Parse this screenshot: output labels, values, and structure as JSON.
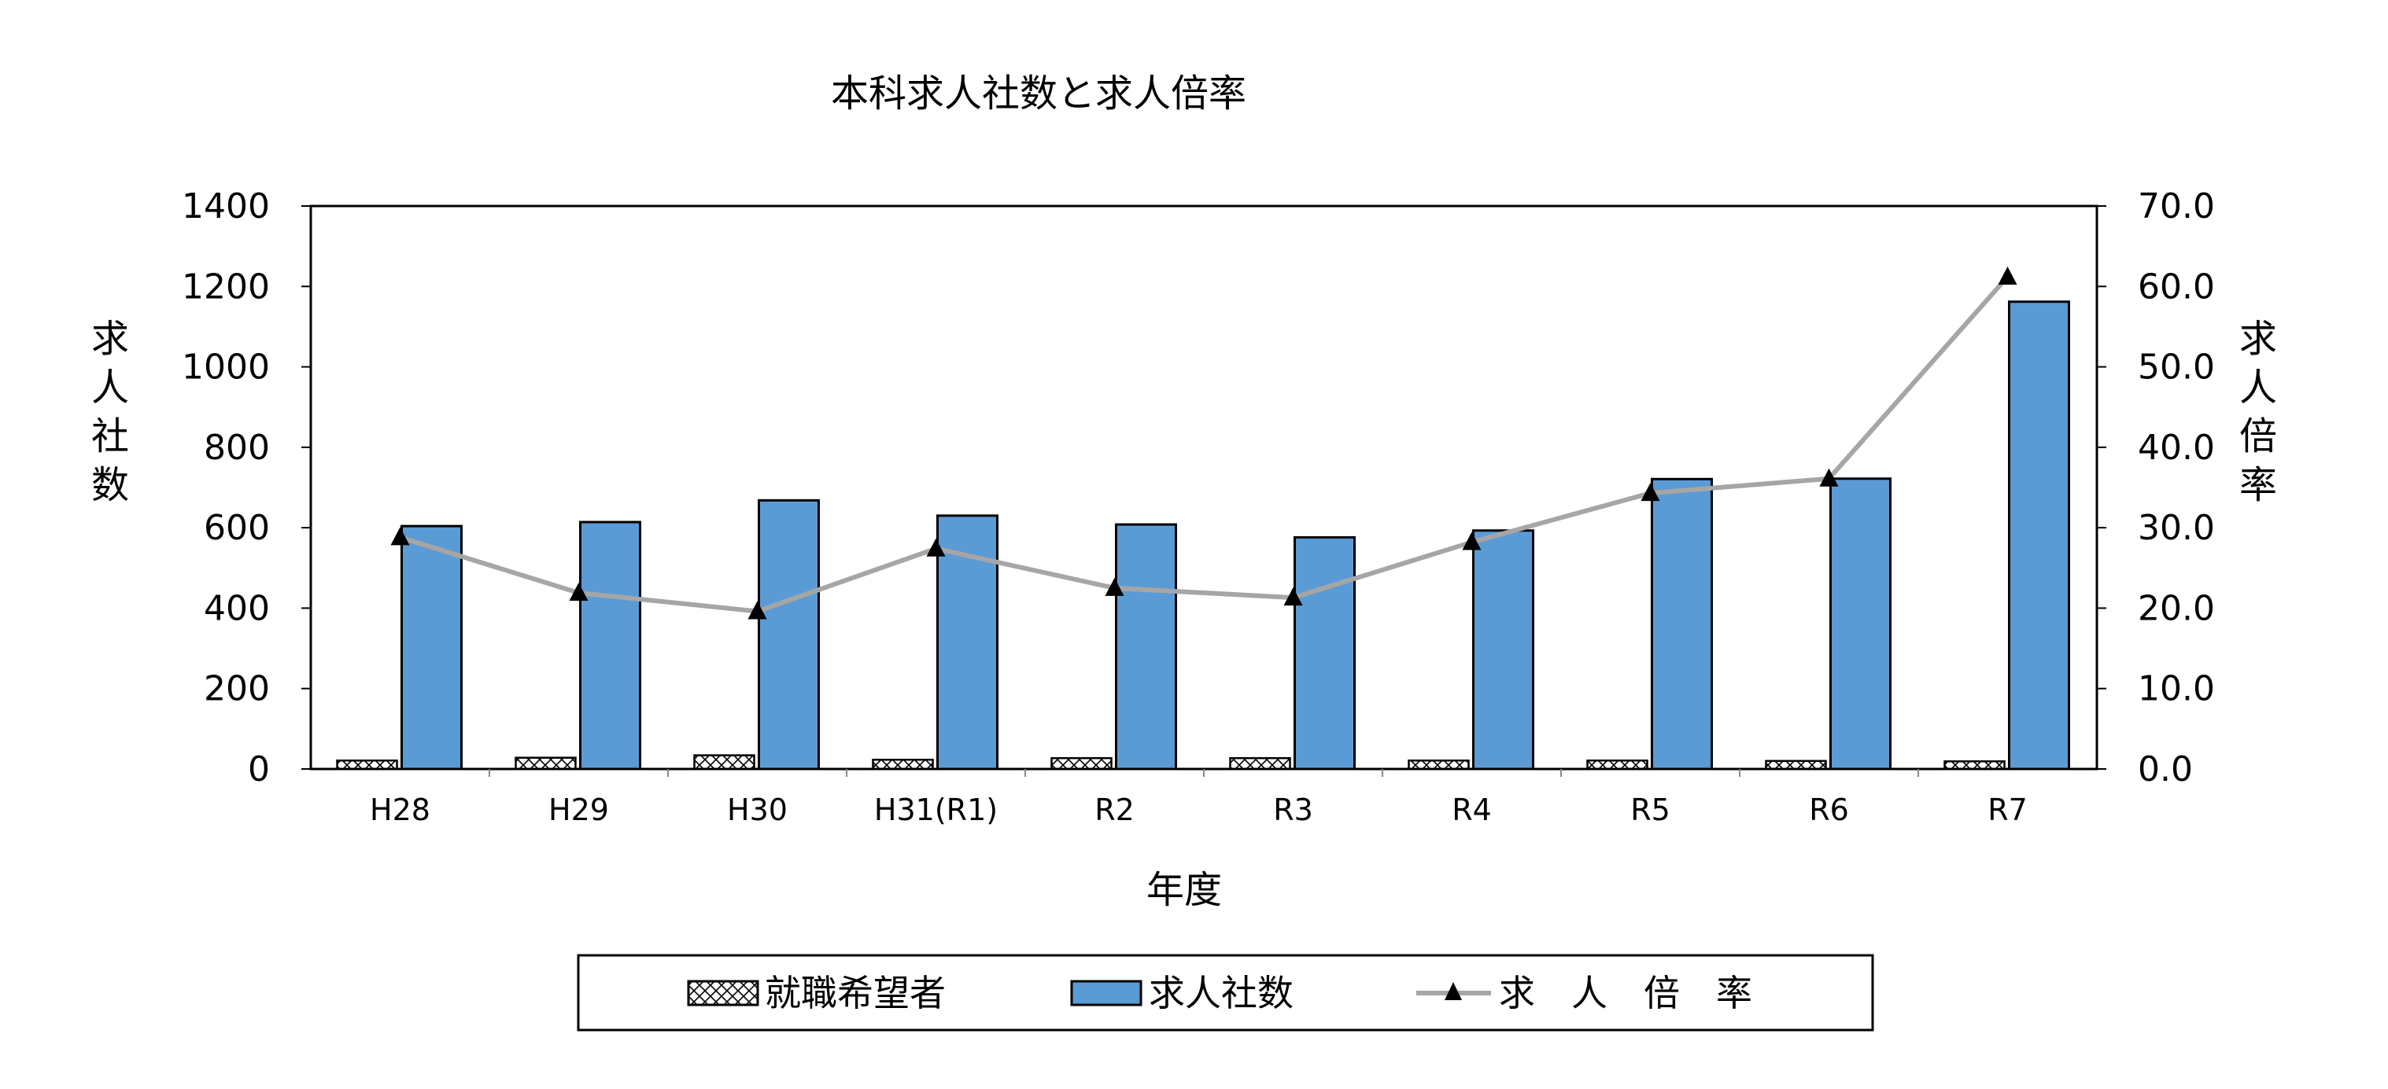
{
  "chart_data": {
    "type": "bar",
    "title": "本科求人社数と求人倍率",
    "xlabel": "年度",
    "ylabel_left": "求人社数",
    "ylabel_right": "求人倍率",
    "ylim_left": [
      0,
      1400
    ],
    "ylim_right": [
      0,
      70
    ],
    "yticks_left": [
      "0",
      "200",
      "400",
      "600",
      "800",
      "1000",
      "1200",
      "1400"
    ],
    "yticks_right": [
      "0.0",
      "10.0",
      "20.0",
      "30.0",
      "40.0",
      "50.0",
      "60.0",
      "70.0"
    ],
    "categories": [
      "H28",
      "H29",
      "H30",
      "H31(R1)",
      "R2",
      "R3",
      "R4",
      "R5",
      "R6",
      "R7"
    ],
    "series": [
      {
        "name": "就職希望者",
        "type": "bar",
        "axis": "left",
        "pattern": "crosshatch",
        "values": [
          21,
          28,
          34,
          23,
          27,
          27,
          21,
          21,
          20,
          19
        ]
      },
      {
        "name": "求人社数",
        "type": "bar",
        "axis": "left",
        "color": "#5b9bd5",
        "values": [
          604,
          614,
          668,
          630,
          608,
          576,
          593,
          721,
          722,
          1162
        ]
      },
      {
        "name": "求　人　倍　率",
        "type": "line",
        "axis": "right",
        "color": "#a6a6a6",
        "marker": "triangle",
        "values": [
          28.8,
          21.9,
          19.6,
          27.4,
          22.5,
          21.3,
          28.2,
          34.3,
          36.1,
          61.2
        ]
      }
    ],
    "legend": "bottom",
    "grid": false
  }
}
